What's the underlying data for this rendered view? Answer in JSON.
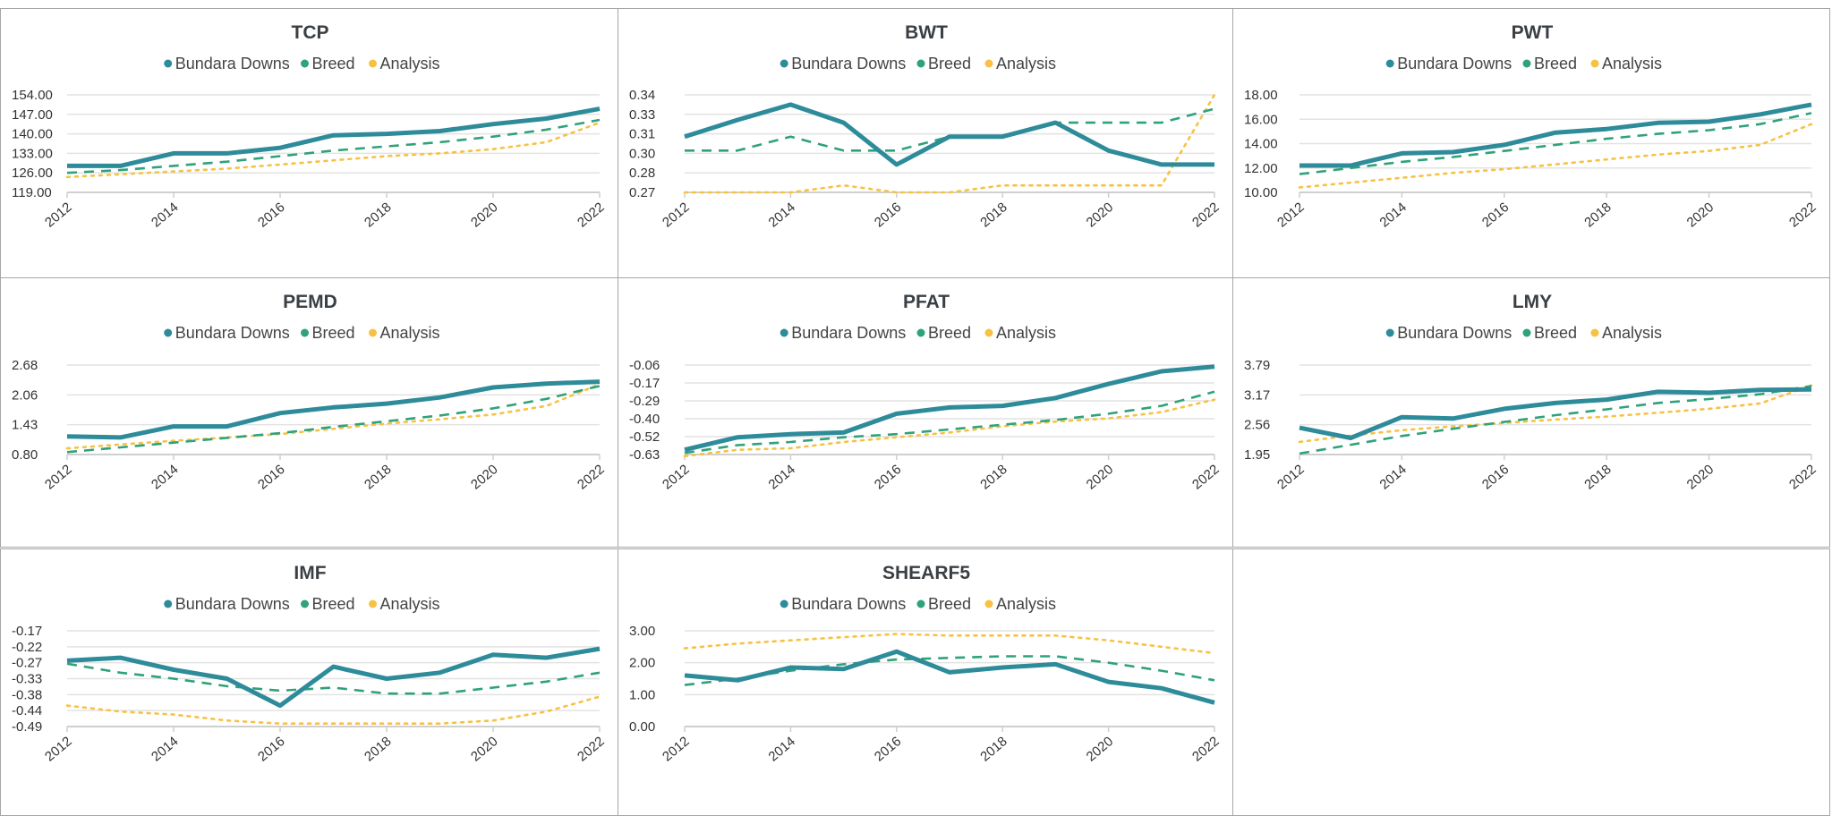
{
  "colors": {
    "Bundara Downs": "#2e8b9a",
    "Breed": "#2fa27a",
    "Analysis": "#f7c244",
    "grid": "#e2e2e2",
    "border": "#a6a6a6"
  },
  "legend": [
    "Bundara Downs",
    "Breed",
    "Analysis"
  ],
  "chart_data": [
    {
      "type": "line",
      "title": "TCP",
      "x": [
        2012,
        2013,
        2014,
        2015,
        2016,
        2017,
        2018,
        2019,
        2020,
        2021,
        2022
      ],
      "xticks": [
        "2012",
        "2014",
        "2016",
        "2018",
        "2020",
        "2022"
      ],
      "yticks": [
        "154.00",
        "147.00",
        "140.00",
        "133.00",
        "126.00",
        "119.00"
      ],
      "ylim": [
        119,
        154
      ],
      "series": [
        {
          "name": "Bundara Downs",
          "style": "solid",
          "values": [
            128.5,
            128.5,
            133,
            133,
            135,
            139.5,
            140,
            141,
            143.5,
            145.5,
            149
          ]
        },
        {
          "name": "Breed",
          "style": "dashed",
          "values": [
            126,
            127,
            128.5,
            130,
            132,
            134,
            135.5,
            137,
            139,
            141.5,
            145
          ]
        },
        {
          "name": "Analysis",
          "style": "dotted",
          "values": [
            124.5,
            125.5,
            126.5,
            127.5,
            129,
            130.5,
            132,
            133,
            134.5,
            137,
            144
          ]
        }
      ]
    },
    {
      "type": "line",
      "title": "BWT",
      "x": [
        2012,
        2013,
        2014,
        2015,
        2016,
        2017,
        2018,
        2019,
        2020,
        2021,
        2022
      ],
      "xticks": [
        "2012",
        "2014",
        "2016",
        "2018",
        "2020",
        "2022"
      ],
      "yticks": [
        "0.34",
        "0.33",
        "0.31",
        "0.30",
        "0.28",
        "0.27"
      ],
      "ylim": [
        0.27,
        0.34
      ],
      "series": [
        {
          "name": "Bundara Downs",
          "style": "solid",
          "values": [
            0.31,
            0.322,
            0.333,
            0.32,
            0.29,
            0.31,
            0.31,
            0.32,
            0.3,
            0.29,
            0.29
          ]
        },
        {
          "name": "Breed",
          "style": "dashed",
          "values": [
            0.3,
            0.3,
            0.31,
            0.3,
            0.3,
            0.31,
            0.31,
            0.32,
            0.32,
            0.32,
            0.33
          ]
        },
        {
          "name": "Analysis",
          "style": "dotted",
          "values": [
            0.27,
            0.27,
            0.27,
            0.275,
            0.27,
            0.27,
            0.275,
            0.275,
            0.275,
            0.275,
            0.34
          ]
        }
      ]
    },
    {
      "type": "line",
      "title": "PWT",
      "x": [
        2012,
        2013,
        2014,
        2015,
        2016,
        2017,
        2018,
        2019,
        2020,
        2021,
        2022
      ],
      "xticks": [
        "2012",
        "2014",
        "2016",
        "2018",
        "2020",
        "2022"
      ],
      "yticks": [
        "18.00",
        "16.00",
        "14.00",
        "12.00",
        "10.00"
      ],
      "ylim": [
        10,
        18
      ],
      "series": [
        {
          "name": "Bundara Downs",
          "style": "solid",
          "values": [
            12.2,
            12.2,
            13.2,
            13.3,
            13.9,
            14.9,
            15.2,
            15.7,
            15.8,
            16.4,
            17.2
          ]
        },
        {
          "name": "Breed",
          "style": "dashed",
          "values": [
            11.5,
            12,
            12.5,
            12.9,
            13.4,
            13.9,
            14.4,
            14.8,
            15.1,
            15.6,
            16.5
          ]
        },
        {
          "name": "Analysis",
          "style": "dotted",
          "values": [
            10.4,
            10.8,
            11.2,
            11.6,
            11.9,
            12.3,
            12.7,
            13.1,
            13.4,
            13.9,
            15.6
          ]
        }
      ]
    },
    {
      "type": "line",
      "title": "PEMD",
      "x": [
        2012,
        2013,
        2014,
        2015,
        2016,
        2017,
        2018,
        2019,
        2020,
        2021,
        2022
      ],
      "xticks": [
        "2012",
        "2014",
        "2016",
        "2018",
        "2020",
        "2022"
      ],
      "yticks": [
        "2.68",
        "2.06",
        "1.43",
        "0.80"
      ],
      "ylim": [
        0.8,
        2.68
      ],
      "series": [
        {
          "name": "Bundara Downs",
          "style": "solid",
          "values": [
            1.18,
            1.16,
            1.39,
            1.39,
            1.67,
            1.79,
            1.87,
            2.0,
            2.21,
            2.29,
            2.33
          ]
        },
        {
          "name": "Breed",
          "style": "dashed",
          "values": [
            0.85,
            0.95,
            1.05,
            1.15,
            1.25,
            1.38,
            1.5,
            1.62,
            1.77,
            1.97,
            2.24
          ]
        },
        {
          "name": "Analysis",
          "style": "dotted",
          "values": [
            0.93,
            1.01,
            1.09,
            1.16,
            1.23,
            1.34,
            1.45,
            1.54,
            1.64,
            1.82,
            2.28
          ]
        }
      ]
    },
    {
      "type": "line",
      "title": "PFAT",
      "x": [
        2012,
        2013,
        2014,
        2015,
        2016,
        2017,
        2018,
        2019,
        2020,
        2021,
        2022
      ],
      "xticks": [
        "2012",
        "2014",
        "2016",
        "2018",
        "2020",
        "2022"
      ],
      "yticks": [
        "-0.06",
        "-0.17",
        "-0.29",
        "-0.40",
        "-0.52",
        "-0.63"
      ],
      "ylim": [
        -0.63,
        -0.06
      ],
      "series": [
        {
          "name": "Bundara Downs",
          "style": "solid",
          "values": [
            -0.6,
            -0.52,
            -0.5,
            -0.49,
            -0.37,
            -0.33,
            -0.32,
            -0.27,
            -0.18,
            -0.1,
            -0.07
          ]
        },
        {
          "name": "Breed",
          "style": "dashed",
          "values": [
            -0.62,
            -0.57,
            -0.55,
            -0.52,
            -0.5,
            -0.47,
            -0.44,
            -0.41,
            -0.37,
            -0.32,
            -0.23
          ]
        },
        {
          "name": "Analysis",
          "style": "dotted",
          "values": [
            -0.64,
            -0.6,
            -0.59,
            -0.55,
            -0.52,
            -0.49,
            -0.45,
            -0.42,
            -0.4,
            -0.36,
            -0.28
          ]
        }
      ]
    },
    {
      "type": "line",
      "title": "LMY",
      "x": [
        2012,
        2013,
        2014,
        2015,
        2016,
        2017,
        2018,
        2019,
        2020,
        2021,
        2022
      ],
      "xticks": [
        "2012",
        "2014",
        "2016",
        "2018",
        "2020",
        "2022"
      ],
      "yticks": [
        "3.79",
        "3.17",
        "2.56",
        "1.95"
      ],
      "ylim": [
        1.95,
        3.79
      ],
      "series": [
        {
          "name": "Bundara Downs",
          "style": "solid",
          "values": [
            2.5,
            2.29,
            2.72,
            2.69,
            2.89,
            3.01,
            3.08,
            3.24,
            3.22,
            3.28,
            3.29
          ]
        },
        {
          "name": "Breed",
          "style": "dashed",
          "values": [
            1.97,
            2.15,
            2.33,
            2.48,
            2.62,
            2.76,
            2.88,
            3.01,
            3.09,
            3.19,
            3.36
          ]
        },
        {
          "name": "Analysis",
          "style": "dotted",
          "values": [
            2.21,
            2.34,
            2.45,
            2.53,
            2.6,
            2.67,
            2.73,
            2.81,
            2.89,
            3.0,
            3.37
          ]
        }
      ]
    },
    {
      "type": "line",
      "title": "IMF",
      "x": [
        2012,
        2013,
        2014,
        2015,
        2016,
        2017,
        2018,
        2019,
        2020,
        2021,
        2022
      ],
      "xticks": [
        "2012",
        "2014",
        "2016",
        "2018",
        "2020",
        "2022"
      ],
      "yticks": [
        "-0.17",
        "-0.22",
        "-0.27",
        "-0.33",
        "-0.38",
        "-0.44",
        "-0.49"
      ],
      "ylim": [
        -0.49,
        -0.17
      ],
      "series": [
        {
          "name": "Bundara Downs",
          "style": "solid",
          "values": [
            -0.27,
            -0.26,
            -0.3,
            -0.33,
            -0.42,
            -0.29,
            -0.33,
            -0.31,
            -0.25,
            -0.26,
            -0.23
          ]
        },
        {
          "name": "Breed",
          "style": "dashed",
          "values": [
            -0.28,
            -0.31,
            -0.33,
            -0.355,
            -0.37,
            -0.36,
            -0.38,
            -0.38,
            -0.36,
            -0.34,
            -0.31
          ]
        },
        {
          "name": "Analysis",
          "style": "dotted",
          "values": [
            -0.42,
            -0.44,
            -0.45,
            -0.47,
            -0.48,
            -0.48,
            -0.48,
            -0.48,
            -0.47,
            -0.44,
            -0.39
          ]
        }
      ]
    },
    {
      "type": "line",
      "title": "SHEARF5",
      "x": [
        2012,
        2013,
        2014,
        2015,
        2016,
        2017,
        2018,
        2019,
        2020,
        2021,
        2022
      ],
      "xticks": [
        "2012",
        "2014",
        "2016",
        "2018",
        "2020",
        "2022"
      ],
      "yticks": [
        "3.00",
        "2.00",
        "1.00",
        "0.00"
      ],
      "ylim": [
        0,
        3
      ],
      "series": [
        {
          "name": "Bundara Downs",
          "style": "solid",
          "values": [
            1.6,
            1.45,
            1.85,
            1.8,
            2.35,
            1.7,
            1.85,
            1.95,
            1.4,
            1.2,
            0.75
          ]
        },
        {
          "name": "Breed",
          "style": "dashed",
          "values": [
            1.3,
            1.5,
            1.75,
            1.95,
            2.1,
            2.15,
            2.2,
            2.2,
            2.0,
            1.75,
            1.45
          ]
        },
        {
          "name": "Analysis",
          "style": "dotted",
          "values": [
            2.45,
            2.6,
            2.7,
            2.8,
            2.9,
            2.85,
            2.85,
            2.85,
            2.7,
            2.5,
            2.3
          ]
        }
      ]
    }
  ]
}
